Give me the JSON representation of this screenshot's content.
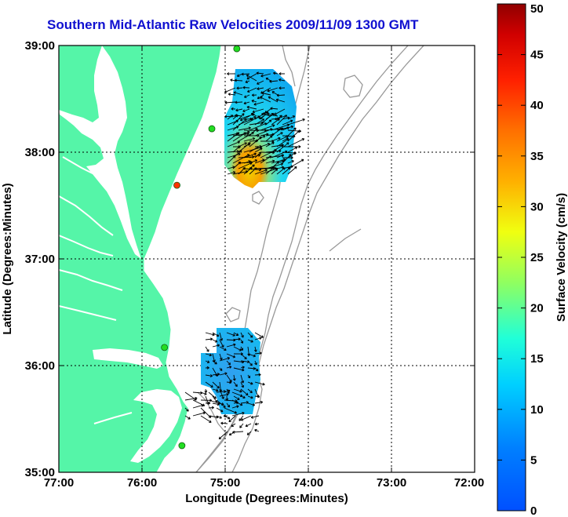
{
  "title": "Southern Mid-Atlantic Raw Velocities 2009/11/09 1300 GMT",
  "x_axis": {
    "label": "Longitude (Degrees:Minutes)",
    "ticks": [
      "77:00",
      "76:00",
      "75:00",
      "74:00",
      "73:00",
      "72:00"
    ]
  },
  "y_axis": {
    "label": "Latitude (Degrees:Minutes)",
    "ticks": [
      "39:00",
      "38:00",
      "37:00",
      "36:00",
      "35:00"
    ]
  },
  "colorbar": {
    "label": "Surface Velocity (cm/s)",
    "ticks": [
      "0",
      "5",
      "10",
      "15",
      "20",
      "25",
      "30",
      "35",
      "40",
      "45",
      "50"
    ],
    "colormap": "jet",
    "range": [
      0,
      50
    ]
  },
  "map": {
    "lon_range": [
      -77,
      -72
    ],
    "lat_range": [
      35,
      39
    ],
    "land_color": "#55f5a8",
    "bathymetry_color": "#999999",
    "grid": "dotted",
    "stations": [
      {
        "color": "#22dd22",
        "lon": -74.86,
        "lat": 38.97
      },
      {
        "color": "#22dd22",
        "lon": -75.16,
        "lat": 38.22
      },
      {
        "color": "#ff3300",
        "lon": -75.58,
        "lat": 37.69
      },
      {
        "color": "#22dd22",
        "lon": -75.73,
        "lat": 36.17
      },
      {
        "color": "#22dd22",
        "lon": -75.52,
        "lat": 35.25
      }
    ]
  },
  "chart_data": {
    "type": "map",
    "title": "Southern Mid-Atlantic Raw Velocities 2009/11/09 1300 GMT",
    "xlabel": "Longitude (Degrees:Minutes)",
    "ylabel": "Latitude (Degrees:Minutes)",
    "xlim": [
      -77,
      -72
    ],
    "ylim": [
      35,
      39
    ],
    "colorbar_label": "Surface Velocity (cm/s)",
    "colorbar_range": [
      0,
      50
    ],
    "velocity_regions": [
      {
        "name": "",
        "lon_range": [
          -75.0,
          -74.2
        ],
        "lat_range": [
          37.7,
          38.8
        ],
        "speed_range_cms": [
          5,
          35
        ]
      },
      {
        "name": "",
        "lon_range": [
          -75.3,
          -74.6
        ],
        "lat_range": [
          35.5,
          36.35
        ],
        "speed_range_cms": [
          5,
          20
        ]
      }
    ]
  }
}
